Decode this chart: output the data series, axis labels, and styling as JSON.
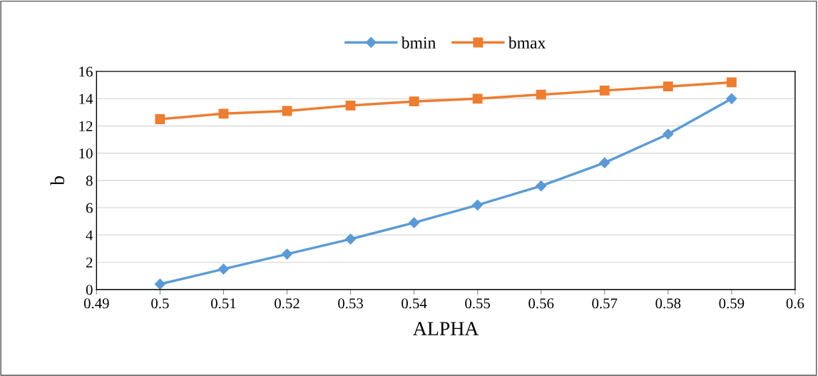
{
  "chart_data": {
    "type": "line",
    "xlabel": "ALPHA",
    "ylabel": "b",
    "x": [
      0.5,
      0.51,
      0.52,
      0.53,
      0.54,
      0.55,
      0.56,
      0.57,
      0.58,
      0.59
    ],
    "series": [
      {
        "name": "bmin",
        "color": "#5b9bd5",
        "marker": "diamond",
        "values": [
          0.4,
          1.5,
          2.6,
          3.7,
          4.9,
          6.2,
          7.6,
          9.3,
          11.4,
          14.0
        ]
      },
      {
        "name": "bmax",
        "color": "#ed7d31",
        "marker": "square",
        "values": [
          12.5,
          12.9,
          13.1,
          13.5,
          13.8,
          14.0,
          14.3,
          14.6,
          14.9,
          15.2
        ]
      }
    ],
    "xlim": [
      0.49,
      0.6
    ],
    "xticks": [
      0.49,
      0.5,
      0.51,
      0.52,
      0.53,
      0.54,
      0.55,
      0.56,
      0.57,
      0.58,
      0.59,
      0.6
    ],
    "ylim": [
      0,
      16
    ],
    "yticks": [
      0,
      2,
      4,
      6,
      8,
      10,
      12,
      14,
      16
    ],
    "grid": "y",
    "legend": "top",
    "line_style": "solid"
  }
}
